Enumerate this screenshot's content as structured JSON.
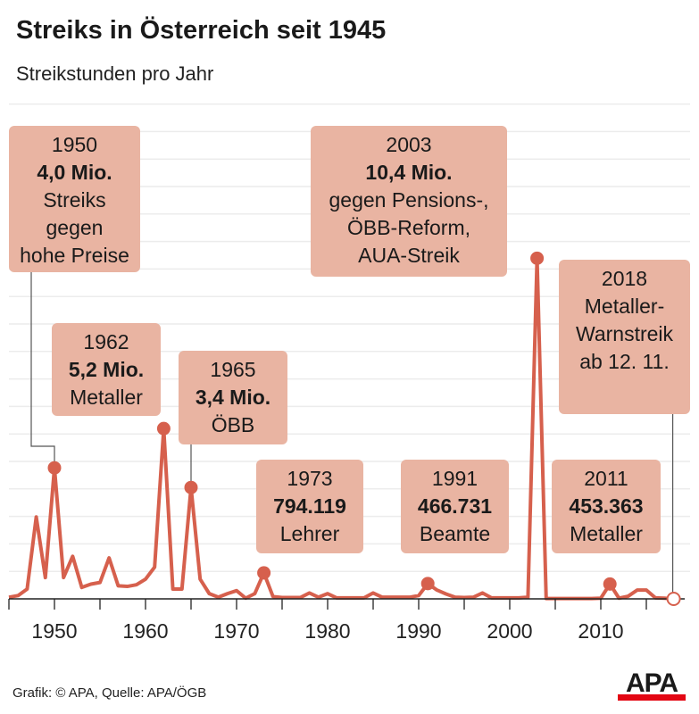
{
  "title": "Streiks in Österreich seit 1945",
  "subtitle": "Streikstunden pro Jahr",
  "source": "Grafik: © APA, Quelle: APA/ÖGB",
  "logo": "APA",
  "colors": {
    "line": "#d6604d",
    "box": "#e9b4a2",
    "grid": "#ececec",
    "logo_red": "#e30613"
  },
  "chart_data": {
    "type": "line",
    "title": "Streiks in Österreich seit 1945",
    "subtitle": "Streikstunden pro Jahr",
    "unit": "Mio. Streikstunden",
    "xlim": [
      1945,
      2019
    ],
    "ylim": [
      0,
      15
    ],
    "grid": true,
    "x_ticks": [
      1950,
      1960,
      1970,
      1980,
      1990,
      2000,
      2010
    ],
    "x": [
      1945,
      1946,
      1947,
      1948,
      1949,
      1950,
      1951,
      1952,
      1953,
      1954,
      1955,
      1956,
      1957,
      1958,
      1959,
      1960,
      1961,
      1962,
      1963,
      1964,
      1965,
      1966,
      1967,
      1968,
      1969,
      1970,
      1971,
      1972,
      1973,
      1974,
      1975,
      1976,
      1977,
      1978,
      1979,
      1980,
      1981,
      1982,
      1983,
      1984,
      1985,
      1986,
      1987,
      1988,
      1989,
      1990,
      1991,
      1992,
      1993,
      1994,
      1995,
      1996,
      1997,
      1998,
      1999,
      2000,
      2001,
      2002,
      2003,
      2004,
      2005,
      2006,
      2007,
      2008,
      2009,
      2010,
      2011,
      2012,
      2013,
      2014,
      2015,
      2016,
      2017,
      2018
    ],
    "values": [
      0.05,
      0.1,
      0.3,
      2.5,
      0.65,
      4.0,
      0.65,
      1.3,
      0.35,
      0.45,
      0.5,
      1.25,
      0.4,
      0.38,
      0.43,
      0.6,
      0.97,
      5.2,
      0.3,
      0.3,
      3.4,
      0.6,
      0.16,
      0.05,
      0.16,
      0.25,
      0.02,
      0.16,
      0.794,
      0.07,
      0.04,
      0.04,
      0.04,
      0.18,
      0.05,
      0.16,
      0.03,
      0.03,
      0.03,
      0.03,
      0.18,
      0.05,
      0.05,
      0.05,
      0.05,
      0.1,
      0.467,
      0.27,
      0.15,
      0.05,
      0.04,
      0.05,
      0.18,
      0.03,
      0.03,
      0.03,
      0.03,
      0.05,
      10.4,
      0.01,
      0.01,
      0.01,
      0.01,
      0.01,
      0.01,
      0.02,
      0.453,
      0.02,
      0.08,
      0.27,
      0.27,
      0.03,
      0.02,
      0
    ],
    "highlighted": [
      {
        "year": 1950,
        "lines": [
          "1950",
          "4,0 Mio.",
          "Streiks",
          "gegen",
          "hohe Preise"
        ]
      },
      {
        "year": 1962,
        "lines": [
          "1962",
          "5,2 Mio.",
          "Metaller"
        ]
      },
      {
        "year": 1965,
        "lines": [
          "1965",
          "3,4 Mio.",
          "ÖBB"
        ]
      },
      {
        "year": 1973,
        "lines": [
          "1973",
          "794.119",
          "Lehrer"
        ]
      },
      {
        "year": 1991,
        "lines": [
          "1991",
          "466.731",
          "Beamte"
        ]
      },
      {
        "year": 2003,
        "lines": [
          "2003",
          "10,4 Mio.",
          "gegen Pensions-,",
          "ÖBB-Reform,",
          "AUA-Streik"
        ]
      },
      {
        "year": 2011,
        "lines": [
          "2011",
          "453.363",
          "Metaller"
        ]
      },
      {
        "year": 2018,
        "hollow": true,
        "lines": [
          "2018",
          "Metaller-",
          "Warnstreik",
          "ab 12. 11."
        ]
      }
    ]
  }
}
